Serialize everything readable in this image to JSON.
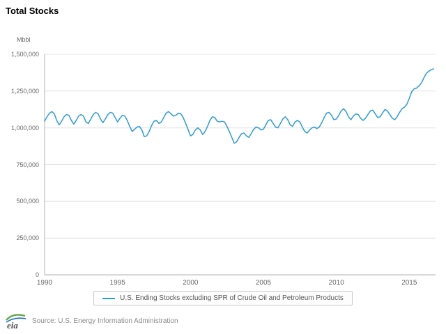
{
  "title": "Total Stocks",
  "axis": {
    "unit_label": "Mbbl"
  },
  "footer": {
    "source_text": "Source: U.S. Energy Information Administration",
    "logo_text": "eia"
  },
  "chart_data": {
    "type": "line",
    "title": "Total Stocks",
    "ylabel": "Mbbl",
    "xlabel": "",
    "grid": true,
    "legend_position": "bottom",
    "xlim": [
      1990,
      2016.8
    ],
    "ylim": [
      0,
      1500000
    ],
    "x_ticks": [
      1990,
      1995,
      2000,
      2005,
      2010,
      2015
    ],
    "y_ticks": [
      0,
      250000,
      500000,
      750000,
      1000000,
      1250000,
      1500000
    ],
    "y_tick_labels": [
      "0",
      "250,000",
      "500,000",
      "750,000",
      "1,000,000",
      "1,250,000",
      "1,500,000"
    ],
    "x_start": 1990,
    "x_step": 0.1666667,
    "series": [
      {
        "name": "U.S. Ending Stocks excluding SPR of Crude Oil and Petroleum Products",
        "color": "#2b9bd7",
        "values": [
          1045000,
          1075000,
          1100000,
          1110000,
          1095000,
          1050000,
          1020000,
          1045000,
          1075000,
          1090000,
          1085000,
          1050000,
          1025000,
          1050000,
          1080000,
          1090000,
          1080000,
          1040000,
          1030000,
          1060000,
          1090000,
          1105000,
          1095000,
          1060000,
          1035000,
          1060000,
          1090000,
          1105000,
          1100000,
          1070000,
          1040000,
          1065000,
          1085000,
          1080000,
          1050000,
          1010000,
          975000,
          990000,
          1005000,
          1010000,
          985000,
          940000,
          945000,
          975000,
          1015000,
          1045000,
          1050000,
          1030000,
          1040000,
          1070000,
          1100000,
          1110000,
          1095000,
          1080000,
          1085000,
          1100000,
          1095000,
          1070000,
          1030000,
          990000,
          945000,
          955000,
          985000,
          1000000,
          985000,
          955000,
          975000,
          1010000,
          1050000,
          1075000,
          1070000,
          1045000,
          1040000,
          1045000,
          1040000,
          1010000,
          975000,
          935000,
          895000,
          905000,
          935000,
          960000,
          965000,
          945000,
          935000,
          960000,
          990000,
          1005000,
          1000000,
          985000,
          990000,
          1020000,
          1050000,
          1055000,
          1030000,
          1005000,
          1000000,
          1030000,
          1060000,
          1075000,
          1055000,
          1020000,
          1010000,
          1040000,
          1050000,
          1040000,
          1005000,
          975000,
          965000,
          985000,
          1000000,
          1005000,
          995000,
          1005000,
          1035000,
          1070000,
          1100000,
          1105000,
          1085000,
          1055000,
          1060000,
          1085000,
          1115000,
          1130000,
          1110000,
          1075000,
          1055000,
          1080000,
          1095000,
          1090000,
          1065000,
          1050000,
          1065000,
          1090000,
          1115000,
          1120000,
          1095000,
          1070000,
          1075000,
          1100000,
          1125000,
          1115000,
          1090000,
          1065000,
          1055000,
          1075000,
          1105000,
          1130000,
          1140000,
          1160000,
          1200000,
          1245000,
          1265000,
          1270000,
          1285000,
          1305000,
          1340000,
          1370000,
          1385000,
          1395000,
          1400000
        ]
      }
    ]
  }
}
